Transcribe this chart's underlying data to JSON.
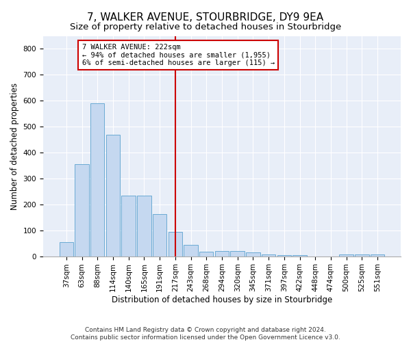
{
  "title": "7, WALKER AVENUE, STOURBRIDGE, DY9 9EA",
  "subtitle": "Size of property relative to detached houses in Stourbridge",
  "xlabel": "Distribution of detached houses by size in Stourbridge",
  "ylabel": "Number of detached properties",
  "bar_color": "#c5d8f0",
  "bar_edge_color": "#6aaad4",
  "background_color": "#e8eef8",
  "grid_color": "#ffffff",
  "categories": [
    "37sqm",
    "63sqm",
    "88sqm",
    "114sqm",
    "140sqm",
    "165sqm",
    "191sqm",
    "217sqm",
    "243sqm",
    "268sqm",
    "294sqm",
    "320sqm",
    "345sqm",
    "371sqm",
    "397sqm",
    "422sqm",
    "448sqm",
    "474sqm",
    "500sqm",
    "525sqm",
    "551sqm"
  ],
  "values": [
    55,
    355,
    590,
    468,
    235,
    235,
    162,
    95,
    43,
    18,
    20,
    20,
    15,
    7,
    5,
    3,
    0,
    0,
    8,
    8,
    6
  ],
  "vline_index": 7,
  "annotation_text": "7 WALKER AVENUE: 222sqm\n← 94% of detached houses are smaller (1,955)\n6% of semi-detached houses are larger (115) →",
  "annotation_box_color": "#cc0000",
  "vline_color": "#cc0000",
  "ylim": [
    0,
    850
  ],
  "yticks": [
    0,
    100,
    200,
    300,
    400,
    500,
    600,
    700,
    800
  ],
  "footer": "Contains HM Land Registry data © Crown copyright and database right 2024.\nContains public sector information licensed under the Open Government Licence v3.0.",
  "title_fontsize": 11,
  "subtitle_fontsize": 9.5,
  "axis_label_fontsize": 8.5,
  "tick_fontsize": 7.5,
  "annotation_fontsize": 7.5,
  "footer_fontsize": 6.5
}
